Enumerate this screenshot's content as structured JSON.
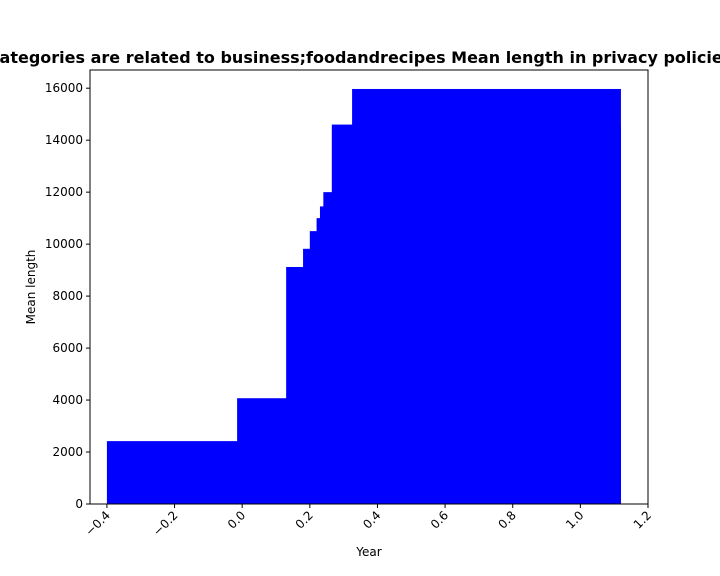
{
  "chart_data": {
    "type": "bar",
    "title": "Categories are related to business;foodandrecipes Mean length in privacy policies",
    "xlabel": "Year",
    "ylabel": "Mean length",
    "xlim": [
      -0.45,
      1.2
    ],
    "ylim": [
      0,
      16700
    ],
    "xticks": [
      -0.4,
      -0.2,
      0.0,
      0.2,
      0.4,
      0.6,
      0.8,
      1.0,
      1.2
    ],
    "xtick_labels": [
      "−0.4",
      "−0.2",
      "0.0",
      "0.2",
      "0.4",
      "0.6",
      "0.8",
      "1.0",
      "1.2"
    ],
    "yticks": [
      0,
      2000,
      4000,
      6000,
      8000,
      10000,
      12000,
      14000,
      16000
    ],
    "ytick_labels": [
      "0",
      "2000",
      "4000",
      "6000",
      "8000",
      "10000",
      "12000",
      "14000",
      "16000"
    ],
    "bar_color": "#0000ff",
    "grid": false,
    "bars": [
      {
        "x0": -0.4,
        "x1": 1.12,
        "value": 2420
      },
      {
        "x0": -0.015,
        "x1": 1.12,
        "value": 4070
      },
      {
        "x0": 0.13,
        "x1": 1.12,
        "value": 9120
      },
      {
        "x0": 0.18,
        "x1": 1.12,
        "value": 9820
      },
      {
        "x0": 0.2,
        "x1": 1.12,
        "value": 10500
      },
      {
        "x0": 0.22,
        "x1": 1.12,
        "value": 11000
      },
      {
        "x0": 0.23,
        "x1": 1.12,
        "value": 11450
      },
      {
        "x0": 0.24,
        "x1": 1.12,
        "value": 12000
      },
      {
        "x0": 0.265,
        "x1": 1.12,
        "value": 14600
      },
      {
        "x0": 0.325,
        "x1": 1.12,
        "value": 15970
      }
    ]
  }
}
